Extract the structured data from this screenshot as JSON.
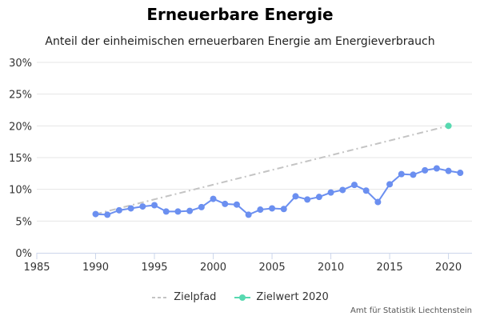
{
  "chart_data": {
    "type": "line",
    "title": "Erneuerbare Energie",
    "subtitle": "Anteil der einheimischen erneuerbaren Energie am Energieverbrauch",
    "xlabel": "",
    "ylabel": "",
    "xlim": [
      1985,
      2022
    ],
    "ylim": [
      0,
      30
    ],
    "x_ticks": [
      1985,
      1990,
      1995,
      2000,
      2005,
      2010,
      2015,
      2020
    ],
    "y_ticks": [
      0,
      5,
      10,
      15,
      20,
      25,
      30
    ],
    "y_tick_labels": [
      "0%",
      "5%",
      "10%",
      "15%",
      "20%",
      "25%",
      "30%"
    ],
    "grid": true,
    "legend_position": "bottom",
    "series": [
      {
        "name": "",
        "color": "#6b8ff0",
        "style": "line-markers",
        "x": [
          1990,
          1991,
          1992,
          1993,
          1994,
          1995,
          1996,
          1997,
          1998,
          1999,
          2000,
          2001,
          2002,
          2003,
          2004,
          2005,
          2006,
          2007,
          2008,
          2009,
          2010,
          2011,
          2012,
          2013,
          2014,
          2015,
          2016,
          2017,
          2018,
          2019,
          2020,
          2021
        ],
        "y": [
          6.1,
          6.0,
          6.7,
          7.0,
          7.3,
          7.5,
          6.5,
          6.5,
          6.6,
          7.2,
          8.5,
          7.7,
          7.6,
          6.0,
          6.8,
          7.0,
          6.9,
          8.9,
          8.4,
          8.8,
          9.5,
          9.9,
          10.7,
          9.8,
          8.0,
          10.8,
          12.4,
          12.3,
          13.0,
          13.3,
          12.9,
          12.6
        ]
      },
      {
        "name": "Zielpfad",
        "color": "#c4c4c4",
        "style": "dashed",
        "x": [
          1990,
          2020
        ],
        "y": [
          6.1,
          20.0
        ]
      },
      {
        "name": "Zielwert 2020",
        "color": "#57d9b0",
        "style": "marker",
        "x": [
          2020
        ],
        "y": [
          20.0
        ]
      }
    ],
    "credits": "Amt für Statistik Liechtenstein"
  }
}
